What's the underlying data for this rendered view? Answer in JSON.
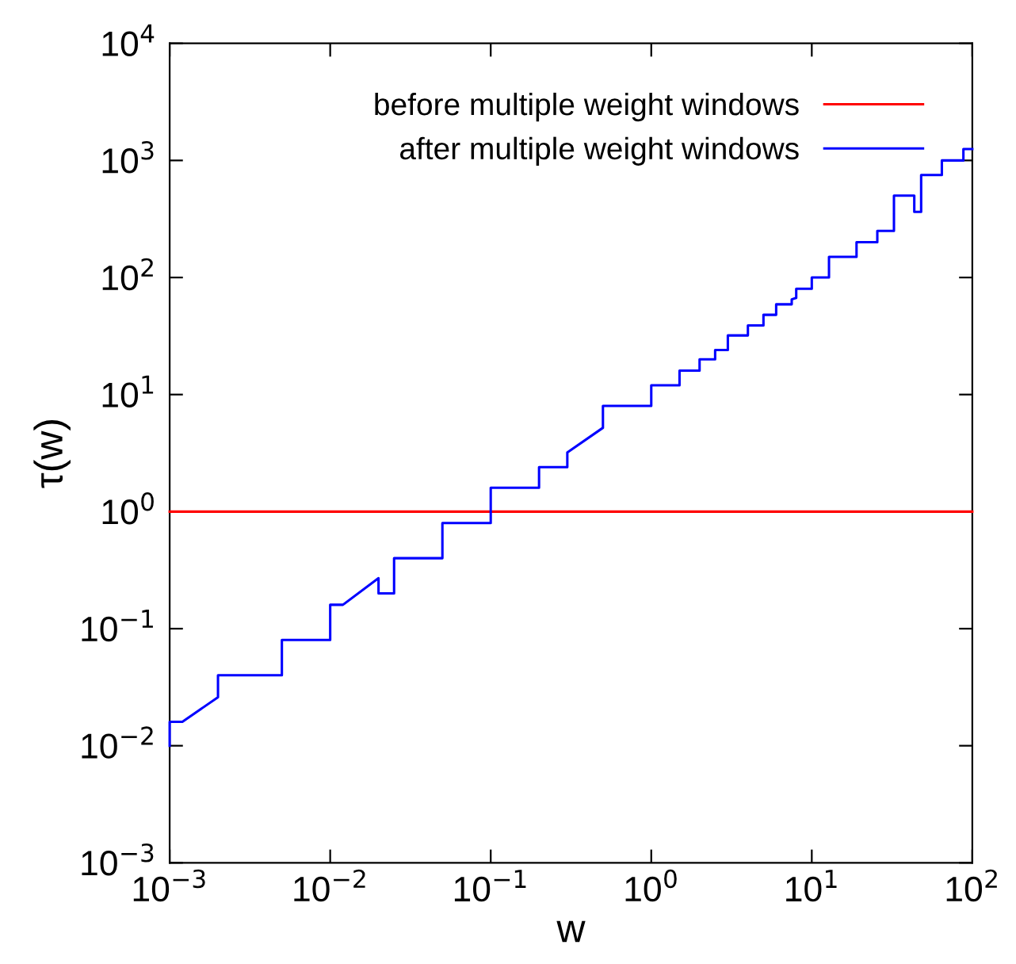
{
  "chart_data": {
    "type": "line",
    "xlabel": "w",
    "ylabel": "τ(w)",
    "log": "xy",
    "xlim": [
      0.001,
      100
    ],
    "ylim": [
      0.001,
      10000
    ],
    "xticks": [
      {
        "value": 0.001,
        "label": "10$^{−3}$"
      },
      {
        "value": 0.01,
        "label": "10$^{−2}$"
      },
      {
        "value": 0.1,
        "label": "10$^{−1}$"
      },
      {
        "value": 1,
        "label": "10$^{0}$"
      },
      {
        "value": 10,
        "label": "10$^{1}$"
      },
      {
        "value": 100,
        "label": "10$^{2}$"
      }
    ],
    "yticks": [
      {
        "value": 0.001,
        "label": "10$^{−3}$"
      },
      {
        "value": 0.01,
        "label": "10$^{−2}$"
      },
      {
        "value": 0.1,
        "label": "10$^{−1}$"
      },
      {
        "value": 1,
        "label": "10$^{0}$"
      },
      {
        "value": 10,
        "label": "10$^{1}$"
      },
      {
        "value": 100,
        "label": "10$^{2}$"
      },
      {
        "value": 1000,
        "label": "10$^{3}$"
      },
      {
        "value": 10000,
        "label": "10$^{4}$"
      }
    ],
    "legend": "top right",
    "grid": false,
    "marker": "none",
    "line_style": "solid",
    "series": [
      {
        "name": "before multiple weight windows",
        "color": "#ff0000",
        "x": [
          0.001,
          100
        ],
        "values": [
          1,
          1
        ]
      },
      {
        "name": "after multiple weight windows",
        "color": "#0000ff",
        "x": [
          0.001,
          0.001,
          0.0012,
          0.002,
          0.002,
          0.005,
          0.005,
          0.01,
          0.01,
          0.012,
          0.02,
          0.02,
          0.025,
          0.025,
          0.05,
          0.05,
          0.1,
          0.1,
          0.2,
          0.2,
          0.3,
          0.3,
          0.5,
          0.5,
          1,
          1,
          1.5,
          1.5,
          2,
          2,
          2.5,
          2.5,
          3,
          3,
          4,
          4,
          5,
          5,
          6,
          6,
          7.5,
          7.5,
          8,
          8,
          10,
          10,
          12.8,
          12.8,
          19,
          19,
          25.6,
          25.6,
          32.5,
          32.5,
          43.5,
          43.5,
          48,
          48,
          64.6,
          64.6,
          88,
          88,
          100
        ],
        "values": [
          0.01,
          0.016,
          0.016,
          0.026,
          0.04,
          0.04,
          0.08,
          0.08,
          0.16,
          0.16,
          0.27,
          0.2,
          0.2,
          0.4,
          0.4,
          0.8,
          0.8,
          1.6,
          1.6,
          2.4,
          2.4,
          3.2,
          5.2,
          8,
          8,
          12,
          12,
          16,
          16,
          20,
          20,
          24,
          24,
          32,
          32,
          39,
          39,
          48,
          48,
          59,
          59,
          65,
          67,
          80,
          80,
          100,
          100,
          150,
          150,
          200,
          200,
          250,
          250,
          500,
          500,
          364,
          364,
          750,
          750,
          1000,
          1000,
          1250,
          1250
        ]
      }
    ]
  }
}
